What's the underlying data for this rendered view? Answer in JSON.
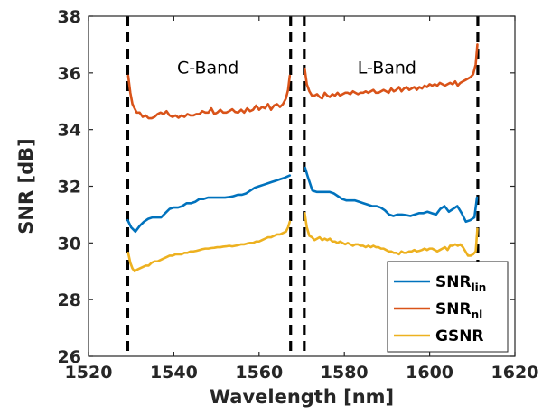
{
  "chart_data": {
    "type": "line",
    "xlabel": "Wavelength [nm]",
    "ylabel": "SNR [dB]",
    "xlim": [
      1520,
      1620
    ],
    "ylim": [
      26,
      38
    ],
    "xticks": [
      "1520",
      "1540",
      "1560",
      "1580",
      "1600",
      "1620"
    ],
    "yticks": [
      "26",
      "28",
      "30",
      "32",
      "34",
      "36",
      "38"
    ],
    "grid": false,
    "legend_position": "bottom-right",
    "vlines": [
      1529.2,
      1567.4,
      1570.6,
      1611.3
    ],
    "annotations": [
      {
        "text": "C-Band",
        "x": 1548,
        "y": 36.2
      },
      {
        "text": "L-Band",
        "x": 1590,
        "y": 36.2
      }
    ],
    "series": [
      {
        "name": "SNR",
        "name_sub": "lin",
        "color": "#0072BD",
        "segments": [
          {
            "x": [
              1529.2,
              1530,
              1531,
              1532,
              1533,
              1534,
              1535,
              1536,
              1537,
              1538,
              1539,
              1540,
              1541,
              1542,
              1543,
              1544,
              1545,
              1546,
              1547,
              1548,
              1549,
              1550,
              1551,
              1552,
              1553,
              1554,
              1555,
              1556,
              1557,
              1558,
              1559,
              1560,
              1561,
              1562,
              1563,
              1564,
              1565,
              1566,
              1567.2
            ],
            "y": [
              30.8,
              30.55,
              30.4,
              30.6,
              30.75,
              30.85,
              30.9,
              30.9,
              30.9,
              31.05,
              31.2,
              31.25,
              31.25,
              31.3,
              31.4,
              31.4,
              31.45,
              31.55,
              31.55,
              31.6,
              31.6,
              31.6,
              31.6,
              31.6,
              31.62,
              31.65,
              31.7,
              31.7,
              31.75,
              31.85,
              31.95,
              32.0,
              32.05,
              32.1,
              32.15,
              32.2,
              32.25,
              32.3,
              32.38
            ]
          },
          {
            "x": [
              1570.8,
              1571.5,
              1572.5,
              1573.5,
              1574.5,
              1575.5,
              1576.5,
              1577.5,
              1578.5,
              1579.5,
              1580.5,
              1581.5,
              1582.5,
              1583.5,
              1584.5,
              1585.5,
              1586.5,
              1587.5,
              1588.5,
              1589.5,
              1590.5,
              1591.5,
              1592.5,
              1593.5,
              1594.5,
              1595.5,
              1596.5,
              1597.5,
              1598.5,
              1599.5,
              1600.5,
              1601.5,
              1602.5,
              1603.5,
              1604.5,
              1605.5,
              1606.5,
              1607.5,
              1608.5,
              1609.5,
              1610.5,
              1611.1
            ],
            "y": [
              32.65,
              32.3,
              31.85,
              31.8,
              31.8,
              31.8,
              31.8,
              31.75,
              31.65,
              31.55,
              31.5,
              31.5,
              31.5,
              31.45,
              31.4,
              31.35,
              31.3,
              31.3,
              31.25,
              31.15,
              31.0,
              30.95,
              31.0,
              31.0,
              30.98,
              30.95,
              31.0,
              31.05,
              31.05,
              31.1,
              31.05,
              31.0,
              31.2,
              31.3,
              31.1,
              31.2,
              31.3,
              31.05,
              30.75,
              30.8,
              30.9,
              31.6
            ]
          }
        ]
      },
      {
        "name": "SNR",
        "name_sub": "nl",
        "color": "#D95319",
        "segments": [
          {
            "x": [
              1529.3,
              1529.8,
              1530.3,
              1530.8,
              1531.3,
              1532,
              1532.7,
              1533.4,
              1534.1,
              1534.8,
              1535.5,
              1536.2,
              1536.9,
              1537.6,
              1538.3,
              1539,
              1539.7,
              1540.4,
              1541.1,
              1541.8,
              1542.5,
              1543.2,
              1543.9,
              1544.6,
              1545.3,
              1546,
              1546.7,
              1547.4,
              1548.1,
              1548.8,
              1549.5,
              1550.2,
              1550.9,
              1551.6,
              1552.3,
              1553,
              1553.7,
              1554.4,
              1555.1,
              1555.8,
              1556.5,
              1557.2,
              1557.9,
              1558.6,
              1559.3,
              1560,
              1560.7,
              1561.4,
              1562.1,
              1562.8,
              1563.5,
              1564.2,
              1564.9,
              1565.6,
              1566.3,
              1566.8,
              1567.2
            ],
            "y": [
              35.9,
              35.3,
              34.9,
              34.75,
              34.6,
              34.6,
              34.45,
              34.5,
              34.4,
              34.4,
              34.45,
              34.55,
              34.6,
              34.55,
              34.65,
              34.5,
              34.45,
              34.5,
              34.42,
              34.5,
              34.45,
              34.55,
              34.5,
              34.5,
              34.55,
              34.55,
              34.65,
              34.6,
              34.6,
              34.75,
              34.55,
              34.6,
              34.7,
              34.6,
              34.6,
              34.65,
              34.72,
              34.62,
              34.6,
              34.7,
              34.6,
              34.75,
              34.65,
              34.7,
              34.85,
              34.7,
              34.8,
              34.75,
              34.9,
              34.7,
              34.85,
              34.9,
              34.8,
              34.9,
              35.1,
              35.4,
              35.9
            ]
          },
          {
            "x": [
              1570.7,
              1571.2,
              1571.8,
              1572.4,
              1573,
              1573.6,
              1574.2,
              1574.8,
              1575.4,
              1576,
              1576.6,
              1577.2,
              1577.8,
              1578.4,
              1579,
              1579.6,
              1580.2,
              1580.8,
              1581.4,
              1582,
              1582.6,
              1583.2,
              1583.8,
              1584.4,
              1585,
              1585.6,
              1586.2,
              1586.8,
              1587.4,
              1588,
              1588.6,
              1589.2,
              1589.8,
              1590.4,
              1591,
              1591.6,
              1592.2,
              1592.8,
              1593.4,
              1594,
              1594.6,
              1595.2,
              1595.8,
              1596.4,
              1597,
              1597.6,
              1598.2,
              1598.8,
              1599.4,
              1600,
              1600.6,
              1601.2,
              1601.8,
              1602.4,
              1603,
              1603.6,
              1604.2,
              1604.8,
              1605.4,
              1606,
              1606.6,
              1607.2,
              1607.8,
              1608.4,
              1609,
              1609.6,
              1610.2,
              1610.8,
              1611.2
            ],
            "y": [
              36.15,
              35.6,
              35.35,
              35.2,
              35.2,
              35.25,
              35.15,
              35.1,
              35.3,
              35.2,
              35.15,
              35.25,
              35.2,
              35.3,
              35.2,
              35.25,
              35.3,
              35.3,
              35.25,
              35.35,
              35.3,
              35.25,
              35.3,
              35.3,
              35.35,
              35.3,
              35.35,
              35.4,
              35.3,
              35.3,
              35.35,
              35.4,
              35.35,
              35.3,
              35.45,
              35.35,
              35.4,
              35.5,
              35.35,
              35.45,
              35.5,
              35.4,
              35.45,
              35.5,
              35.4,
              35.5,
              35.45,
              35.55,
              35.5,
              35.6,
              35.55,
              35.6,
              35.55,
              35.65,
              35.6,
              35.55,
              35.6,
              35.65,
              35.6,
              35.7,
              35.55,
              35.65,
              35.7,
              35.75,
              35.8,
              35.85,
              35.95,
              36.3,
              37.0
            ]
          }
        ]
      },
      {
        "name": "GSNR",
        "name_sub": "",
        "color": "#EDB120",
        "segments": [
          {
            "x": [
              1529.3,
              1529.8,
              1530.3,
              1530.8,
              1531.3,
              1532,
              1532.7,
              1533.4,
              1534.1,
              1534.8,
              1535.5,
              1536.2,
              1536.9,
              1537.6,
              1538.3,
              1539,
              1539.7,
              1540.4,
              1541.1,
              1541.8,
              1542.5,
              1543.2,
              1543.9,
              1544.6,
              1545.3,
              1546,
              1546.7,
              1547.4,
              1548.1,
              1548.8,
              1549.5,
              1550.2,
              1550.9,
              1551.6,
              1552.3,
              1553,
              1553.7,
              1554.4,
              1555.1,
              1555.8,
              1556.5,
              1557.2,
              1557.9,
              1558.6,
              1559.3,
              1560,
              1560.7,
              1561.4,
              1562.1,
              1562.8,
              1563.5,
              1564.2,
              1564.9,
              1565.6,
              1566.3,
              1566.8,
              1567.2
            ],
            "y": [
              29.65,
              29.3,
              29.1,
              29.0,
              29.05,
              29.1,
              29.15,
              29.2,
              29.2,
              29.3,
              29.35,
              29.35,
              29.4,
              29.45,
              29.5,
              29.55,
              29.55,
              29.6,
              29.6,
              29.6,
              29.65,
              29.65,
              29.7,
              29.7,
              29.72,
              29.75,
              29.78,
              29.8,
              29.8,
              29.82,
              29.83,
              29.85,
              29.85,
              29.87,
              29.88,
              29.9,
              29.88,
              29.9,
              29.92,
              29.95,
              29.95,
              29.98,
              30.0,
              30.0,
              30.05,
              30.05,
              30.1,
              30.15,
              30.2,
              30.2,
              30.25,
              30.3,
              30.3,
              30.35,
              30.4,
              30.55,
              30.75
            ]
          },
          {
            "x": [
              1570.7,
              1571.2,
              1571.8,
              1572.4,
              1573,
              1573.6,
              1574.2,
              1574.8,
              1575.4,
              1576,
              1576.6,
              1577.2,
              1577.8,
              1578.4,
              1579,
              1579.6,
              1580.2,
              1580.8,
              1581.4,
              1582,
              1582.6,
              1583.2,
              1583.8,
              1584.4,
              1585,
              1585.6,
              1586.2,
              1586.8,
              1587.4,
              1588,
              1588.6,
              1589.2,
              1589.8,
              1590.4,
              1591,
              1591.6,
              1592.2,
              1592.8,
              1593.4,
              1594,
              1594.6,
              1595.2,
              1595.8,
              1596.4,
              1597,
              1597.6,
              1598.2,
              1598.8,
              1599.4,
              1600,
              1600.6,
              1601.2,
              1601.8,
              1602.4,
              1603,
              1603.6,
              1604.2,
              1604.8,
              1605.4,
              1606,
              1606.6,
              1607.2,
              1607.8,
              1608.4,
              1609,
              1609.6,
              1610.2,
              1610.8,
              1611.2
            ],
            "y": [
              31.05,
              30.55,
              30.25,
              30.2,
              30.1,
              30.15,
              30.2,
              30.1,
              30.15,
              30.1,
              30.15,
              30.05,
              30.05,
              30.0,
              30.05,
              30.0,
              29.95,
              30.0,
              29.95,
              29.9,
              29.95,
              29.95,
              29.9,
              29.9,
              29.85,
              29.9,
              29.85,
              29.9,
              29.85,
              29.85,
              29.8,
              29.8,
              29.75,
              29.7,
              29.7,
              29.65,
              29.65,
              29.6,
              29.7,
              29.65,
              29.65,
              29.7,
              29.7,
              29.75,
              29.7,
              29.72,
              29.75,
              29.8,
              29.75,
              29.8,
              29.8,
              29.75,
              29.7,
              29.75,
              29.8,
              29.85,
              29.75,
              29.9,
              29.9,
              29.95,
              29.9,
              29.95,
              29.85,
              29.7,
              29.55,
              29.55,
              29.6,
              29.7,
              30.5
            ]
          }
        ]
      }
    ]
  }
}
